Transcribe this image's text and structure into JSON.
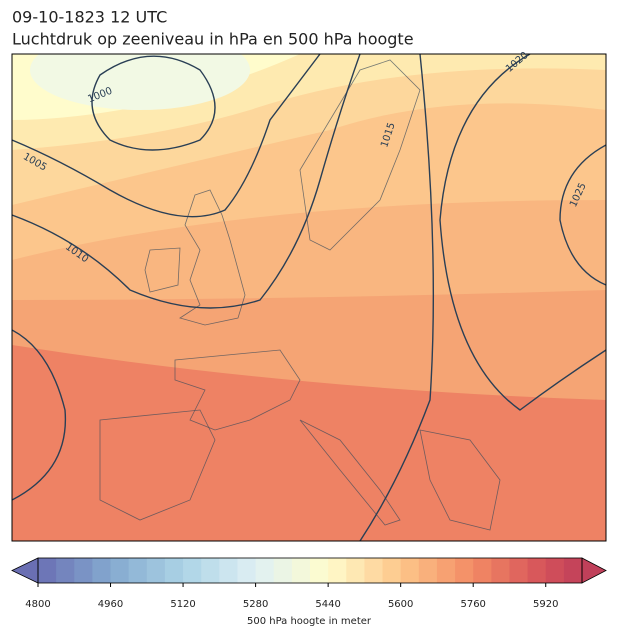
{
  "title": "09-10-1823 12 UTC",
  "subtitle": "Luchtdruk op zeeniveau in hPa en 500 hPa hoogte",
  "contour_labels": [
    1000,
    1005,
    1010,
    1015,
    1020,
    1025
  ],
  "colorbar": {
    "label": "500 hPa hoogte in meter",
    "lim": [
      4800,
      6000
    ],
    "ticks": [
      4800,
      4960,
      5120,
      5280,
      5440,
      5600,
      5760,
      5920
    ],
    "step": 40,
    "stops": [
      [
        4800,
        "#6a6fb3"
      ],
      [
        4960,
        "#84a9cf"
      ],
      [
        5120,
        "#acd3e6"
      ],
      [
        5280,
        "#dff0f4"
      ],
      [
        5440,
        "#fffccc"
      ],
      [
        5600,
        "#fdc68a"
      ],
      [
        5760,
        "#f38a64"
      ],
      [
        5920,
        "#d4515a"
      ],
      [
        6000,
        "#c0405a"
      ]
    ]
  }
}
